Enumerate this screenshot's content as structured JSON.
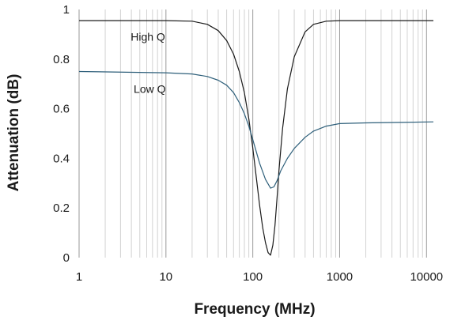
{
  "chart_data": {
    "type": "line",
    "title": "",
    "xlabel": "Frequency (MHz)",
    "ylabel": "Attenuation (dB)",
    "xscale": "log",
    "xlim": [
      1,
      12000
    ],
    "ylim": [
      0,
      1
    ],
    "grid": "vertical minor and major",
    "x_ticks": [
      {
        "value": 1,
        "label": "1"
      },
      {
        "value": 10,
        "label": "10"
      },
      {
        "value": 100,
        "label": "100"
      },
      {
        "value": 1000,
        "label": "1000"
      },
      {
        "value": 10000,
        "label": "10000"
      }
    ],
    "y_ticks": [
      {
        "value": 0,
        "label": "0"
      },
      {
        "value": 0.2,
        "label": "0.2"
      },
      {
        "value": 0.4,
        "label": "0.4"
      },
      {
        "value": 0.6,
        "label": "0.6"
      },
      {
        "value": 0.8,
        "label": "0.8"
      },
      {
        "value": 1,
        "label": "1"
      }
    ],
    "series": [
      {
        "name": "High Q",
        "color": "#1a1a1a",
        "x": [
          1,
          5,
          10,
          20,
          30,
          40,
          50,
          60,
          70,
          80,
          90,
          100,
          110,
          120,
          130,
          140,
          150,
          160,
          170,
          180,
          190,
          200,
          220,
          250,
          300,
          400,
          500,
          700,
          1000,
          2000,
          5000,
          12000
        ],
        "y": [
          0.955,
          0.955,
          0.955,
          0.953,
          0.94,
          0.915,
          0.875,
          0.82,
          0.75,
          0.665,
          0.56,
          0.44,
          0.32,
          0.21,
          0.12,
          0.06,
          0.02,
          0.01,
          0.05,
          0.13,
          0.24,
          0.35,
          0.52,
          0.68,
          0.81,
          0.91,
          0.94,
          0.953,
          0.955,
          0.955,
          0.955,
          0.955
        ]
      },
      {
        "name": "Low Q",
        "color": "#2e5f7a",
        "x": [
          1,
          10,
          20,
          30,
          40,
          50,
          60,
          70,
          80,
          90,
          100,
          120,
          140,
          160,
          175,
          190,
          210,
          250,
          300,
          400,
          500,
          700,
          1000,
          2000,
          5000,
          12000
        ],
        "y": [
          0.75,
          0.745,
          0.74,
          0.73,
          0.715,
          0.695,
          0.665,
          0.625,
          0.58,
          0.53,
          0.475,
          0.38,
          0.315,
          0.28,
          0.285,
          0.31,
          0.35,
          0.4,
          0.44,
          0.485,
          0.51,
          0.53,
          0.54,
          0.543,
          0.545,
          0.547
        ]
      }
    ],
    "annotations": [
      {
        "text": "High Q",
        "x": 6.2,
        "y": 0.89
      },
      {
        "text": "Low Q",
        "x": 6.5,
        "y": 0.68
      }
    ]
  }
}
